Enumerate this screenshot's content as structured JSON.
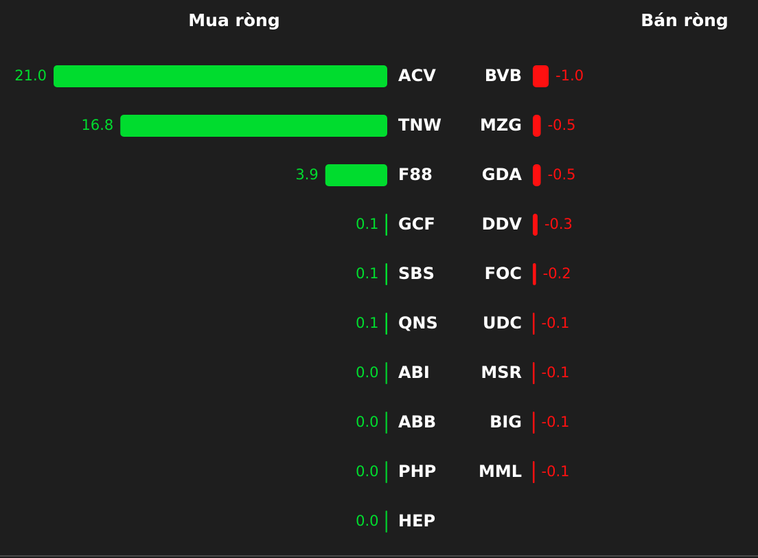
{
  "chart_data": [
    {
      "type": "bar",
      "title": "Mua ròng",
      "categories": [
        "ACV",
        "TNW",
        "F88",
        "GCF",
        "SBS",
        "QNS",
        "ABI",
        "ABB",
        "PHP",
        "HEP"
      ],
      "values": [
        21.0,
        16.8,
        3.9,
        0.1,
        0.1,
        0.1,
        0.0,
        0.0,
        0.0,
        0.0
      ],
      "value_labels": [
        "21.0",
        "16.8",
        "3.9",
        "0.1",
        "0.1",
        "0.1",
        "0.0",
        "0.0",
        "0.0",
        "0.0"
      ],
      "color": "#00dc2e"
    },
    {
      "type": "bar",
      "title": "Bán ròng",
      "categories": [
        "BVB",
        "MZG",
        "GDA",
        "DDV",
        "FOC",
        "UDC",
        "MSR",
        "BIG",
        "MML"
      ],
      "values": [
        -1.0,
        -0.5,
        -0.5,
        -0.3,
        -0.2,
        -0.1,
        -0.1,
        -0.1,
        -0.1
      ],
      "value_labels": [
        "-1.0",
        "-0.5",
        "-0.5",
        "-0.3",
        "-0.2",
        "-0.1",
        "-0.1",
        "-0.1",
        "-0.1"
      ],
      "color": "#ff1010"
    }
  ]
}
